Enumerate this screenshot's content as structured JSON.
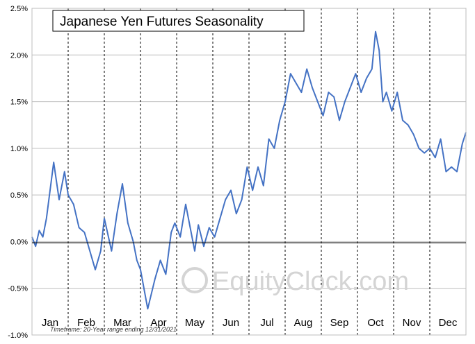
{
  "chart_data": {
    "type": "line",
    "title": "Japanese Yen Futures Seasonality",
    "xlabel": "",
    "ylabel": "",
    "x_categories": [
      "Jan",
      "Feb",
      "Mar",
      "Apr",
      "May",
      "Jun",
      "Jul",
      "Aug",
      "Sep",
      "Oct",
      "Nov",
      "Dec"
    ],
    "ylim": [
      -1.0,
      2.5
    ],
    "yticks": [
      -1.0,
      -0.5,
      0.0,
      0.5,
      1.0,
      1.5,
      2.0,
      2.5
    ],
    "ytick_labels": [
      "-1.0%",
      "-0.5%",
      "0.0%",
      "0.5%",
      "1.0%",
      "1.5%",
      "2.0%",
      "2.5%"
    ],
    "grid": true,
    "series": [
      {
        "color": "#4472c4",
        "x": [
          0.0,
          0.1,
          0.2,
          0.3,
          0.4,
          0.5,
          0.6,
          0.75,
          0.9,
          1.0,
          1.15,
          1.3,
          1.45,
          1.6,
          1.75,
          1.9,
          2.0,
          2.2,
          2.35,
          2.5,
          2.65,
          2.8,
          2.9,
          3.0,
          3.2,
          3.4,
          3.55,
          3.7,
          3.85,
          3.95,
          4.1,
          4.25,
          4.4,
          4.5,
          4.6,
          4.75,
          4.9,
          5.05,
          5.2,
          5.35,
          5.5,
          5.65,
          5.8,
          5.95,
          6.1,
          6.25,
          6.4,
          6.55,
          6.7,
          6.85,
          7.0,
          7.15,
          7.3,
          7.45,
          7.6,
          7.75,
          7.9,
          8.05,
          8.2,
          8.35,
          8.5,
          8.65,
          8.8,
          8.95,
          9.1,
          9.25,
          9.4,
          9.5,
          9.6,
          9.7,
          9.8,
          9.95,
          10.1,
          10.25,
          10.4,
          10.55,
          10.7,
          10.85,
          11.0,
          11.15,
          11.3,
          11.45,
          11.6,
          11.75,
          11.9,
          12.0
        ],
        "y": [
          0.05,
          -0.05,
          0.12,
          0.05,
          0.25,
          0.55,
          0.85,
          0.45,
          0.75,
          0.5,
          0.4,
          0.15,
          0.1,
          -0.1,
          -0.3,
          -0.1,
          0.25,
          -0.1,
          0.3,
          0.62,
          0.2,
          0.0,
          -0.2,
          -0.3,
          -0.72,
          -0.4,
          -0.2,
          -0.35,
          0.1,
          0.2,
          0.05,
          0.4,
          0.1,
          -0.1,
          0.18,
          -0.05,
          0.15,
          0.05,
          0.25,
          0.45,
          0.55,
          0.3,
          0.45,
          0.8,
          0.55,
          0.8,
          0.6,
          1.1,
          1.0,
          1.3,
          1.5,
          1.8,
          1.7,
          1.6,
          1.85,
          1.65,
          1.5,
          1.35,
          1.6,
          1.55,
          1.3,
          1.5,
          1.65,
          1.8,
          1.6,
          1.75,
          1.85,
          2.25,
          2.05,
          1.5,
          1.6,
          1.4,
          1.6,
          1.3,
          1.25,
          1.15,
          1.0,
          0.95,
          1.0,
          0.9,
          1.1,
          0.75,
          0.8,
          0.75,
          1.05,
          1.17
        ]
      }
    ],
    "annotations": {
      "watermark": "© EquityClock.com",
      "footnote": "Timeframe: 20-Year range ending 12/31/2021"
    }
  }
}
